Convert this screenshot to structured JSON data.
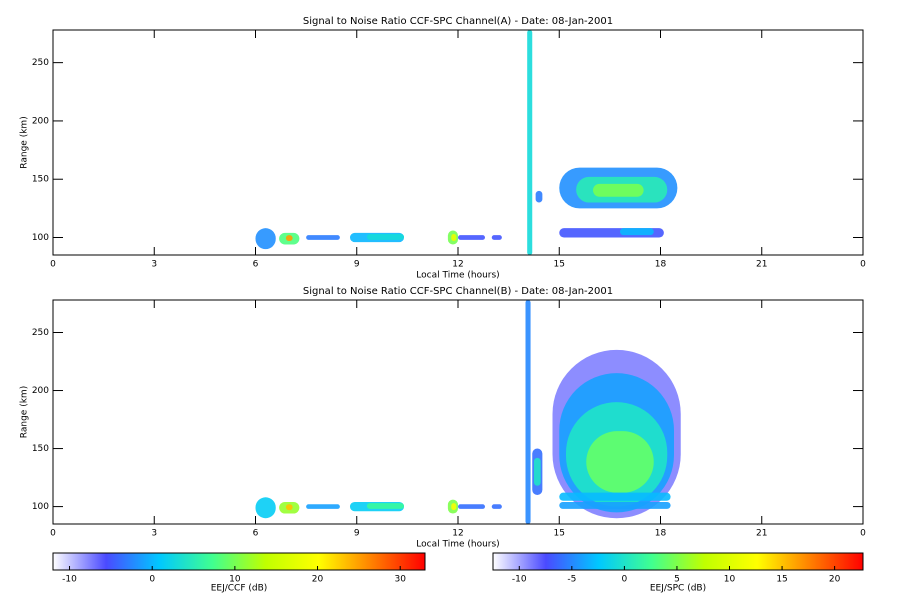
{
  "chart_data": [
    {
      "type": "heatmap",
      "title": "Signal to Noise Ratio CCF-SPC Channel(A) - Date: 08-Jan-2001",
      "xlabel": "Local Time (hours)",
      "ylabel": "Range (km)",
      "xlim": [
        0,
        24
      ],
      "xticks": [
        0,
        3,
        6,
        9,
        12,
        15,
        18,
        21,
        {
          "value": 24,
          "label": "0"
        }
      ],
      "ylim": [
        85,
        278
      ],
      "yticks": [
        100,
        150,
        200,
        250
      ],
      "colormap": [
        "#ffffff",
        "#4a4aff",
        "#00c8ff",
        "#40ff90",
        "#c0ff00",
        "#ffff00",
        "#ff8000",
        "#ff0000"
      ],
      "colorbar": {
        "label": "EEJ/CCF (dB)",
        "clim": [
          -12,
          33
        ],
        "ticks": [
          -10,
          0,
          10,
          20,
          30
        ]
      },
      "patches": [
        {
          "x": [
            14.05,
            14.2
          ],
          "y": [
            85,
            278
          ],
          "value": 3
        },
        {
          "x": [
            15,
            18.5
          ],
          "y": [
            125,
            160
          ],
          "value": -2
        },
        {
          "x": [
            15.5,
            18.2
          ],
          "y": [
            130,
            152
          ],
          "value": 5
        },
        {
          "x": [
            16,
            17.5
          ],
          "y": [
            135,
            146
          ],
          "value": 10
        },
        {
          "x": [
            15,
            18.1
          ],
          "y": [
            100,
            108
          ],
          "value": -5
        },
        {
          "x": [
            16.8,
            17.8
          ],
          "y": [
            102,
            108
          ],
          "value": 0
        },
        {
          "x": [
            14.3,
            14.5
          ],
          "y": [
            130,
            140
          ],
          "value": -3
        },
        {
          "x": [
            6,
            6.6
          ],
          "y": [
            90,
            108
          ],
          "value": -2
        },
        {
          "x": [
            6.7,
            7.3
          ],
          "y": [
            94,
            104
          ],
          "value": 8
        },
        {
          "x": [
            6.9,
            7.1
          ],
          "y": [
            97,
            102
          ],
          "value": 25
        },
        {
          "x": [
            7.5,
            8.5
          ],
          "y": [
            98,
            102
          ],
          "value": -3
        },
        {
          "x": [
            8.8,
            10.4
          ],
          "y": [
            96,
            104
          ],
          "value": 0
        },
        {
          "x": [
            9.3,
            10.4
          ],
          "y": [
            98,
            103
          ],
          "value": 3
        },
        {
          "x": [
            11.7,
            12.0
          ],
          "y": [
            94,
            106
          ],
          "value": 10
        },
        {
          "x": [
            11.8,
            11.95
          ],
          "y": [
            97,
            103
          ],
          "value": 18
        },
        {
          "x": [
            12.0,
            12.8
          ],
          "y": [
            98,
            102
          ],
          "value": -5
        },
        {
          "x": [
            13.0,
            13.3
          ],
          "y": [
            98,
            102
          ],
          "value": -5
        }
      ]
    },
    {
      "type": "heatmap",
      "title": "Signal to Noise Ratio CCF-SPC Channel(B) - Date: 08-Jan-2001",
      "xlabel": "Local Time (hours)",
      "ylabel": "Range (km)",
      "xlim": [
        0,
        24
      ],
      "xticks": [
        0,
        3,
        6,
        9,
        12,
        15,
        18,
        21,
        {
          "value": 24,
          "label": "0"
        }
      ],
      "ylim": [
        85,
        278
      ],
      "yticks": [
        100,
        150,
        200,
        250
      ],
      "colormap": [
        "#ffffff",
        "#4a4aff",
        "#00c8ff",
        "#40ff90",
        "#c0ff00",
        "#ffff00",
        "#ff8000",
        "#ff0000"
      ],
      "colorbar": {
        "label": "EEJ/SPC (dB)",
        "clim": [
          -12.5,
          22.7
        ],
        "ticks": [
          -10,
          -5,
          0,
          5,
          10,
          15,
          20
        ]
      },
      "patches": [
        {
          "x": [
            14.0,
            14.15
          ],
          "y": [
            85,
            278
          ],
          "value": -5
        },
        {
          "x": [
            14.2,
            14.5
          ],
          "y": [
            110,
            150
          ],
          "value": -6
        },
        {
          "x": [
            14.25,
            14.45
          ],
          "y": [
            118,
            142
          ],
          "value": 0
        },
        {
          "x": [
            14.8,
            18.6
          ],
          "y": [
            90,
            235
          ],
          "value": -9
        },
        {
          "x": [
            15.0,
            18.4
          ],
          "y": [
            95,
            215
          ],
          "value": -4
        },
        {
          "x": [
            15.2,
            18.2
          ],
          "y": [
            100,
            190
          ],
          "value": 0
        },
        {
          "x": [
            15.8,
            17.8
          ],
          "y": [
            112,
            165
          ],
          "value": 4
        },
        {
          "x": [
            15,
            18.3
          ],
          "y": [
            98,
            104
          ],
          "value": -4
        },
        {
          "x": [
            15,
            18.3
          ],
          "y": [
            105,
            112
          ],
          "value": -3
        },
        {
          "x": [
            6,
            6.6
          ],
          "y": [
            90,
            108
          ],
          "value": -2
        },
        {
          "x": [
            6.7,
            7.3
          ],
          "y": [
            94,
            104
          ],
          "value": 6
        },
        {
          "x": [
            6.9,
            7.1
          ],
          "y": [
            97,
            102
          ],
          "value": 15
        },
        {
          "x": [
            7.5,
            8.5
          ],
          "y": [
            98,
            102
          ],
          "value": -4
        },
        {
          "x": [
            8.8,
            10.4
          ],
          "y": [
            96,
            104
          ],
          "value": -2
        },
        {
          "x": [
            9.3,
            10.4
          ],
          "y": [
            98,
            103
          ],
          "value": 2
        },
        {
          "x": [
            11.7,
            12.0
          ],
          "y": [
            94,
            106
          ],
          "value": 5
        },
        {
          "x": [
            11.8,
            11.95
          ],
          "y": [
            97,
            103
          ],
          "value": 12
        },
        {
          "x": [
            12.0,
            12.8
          ],
          "y": [
            98,
            102
          ],
          "value": -6
        },
        {
          "x": [
            13.0,
            13.3
          ],
          "y": [
            98,
            102
          ],
          "value": -6
        }
      ]
    }
  ]
}
